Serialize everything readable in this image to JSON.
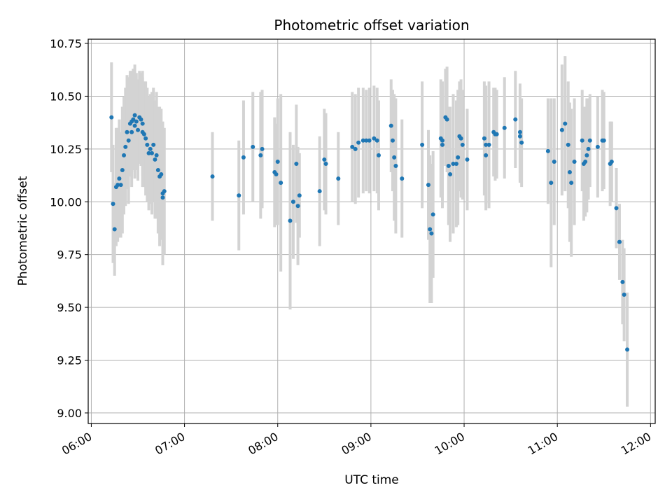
{
  "chart_data": {
    "type": "scatter",
    "title": "Photometric offset variation",
    "xlabel": "UTC time",
    "ylabel": "Photometric offset",
    "x_type": "time",
    "x_range": [
      "05:58",
      "12:03"
    ],
    "ylim": [
      8.95,
      10.77
    ],
    "xticks": [
      "06:00",
      "07:00",
      "08:00",
      "09:00",
      "10:00",
      "11:00",
      "12:00"
    ],
    "yticks": [
      "9.00",
      "9.25",
      "9.50",
      "9.75",
      "10.00",
      "10.25",
      "10.50",
      "10.75"
    ],
    "grid": true,
    "point_color": "#1f77b4",
    "errorbar_color": "#d3d3d3",
    "points": [
      {
        "t": "06:13",
        "y": 10.4,
        "err": 0.26
      },
      {
        "t": "06:14",
        "y": 9.99,
        "err": 0.28
      },
      {
        "t": "06:15",
        "y": 9.87,
        "err": 0.22
      },
      {
        "t": "06:16",
        "y": 10.07,
        "err": 0.28
      },
      {
        "t": "06:17",
        "y": 10.08,
        "err": 0.27
      },
      {
        "t": "06:18",
        "y": 10.11,
        "err": 0.28
      },
      {
        "t": "06:19",
        "y": 10.08,
        "err": 0.25
      },
      {
        "t": "06:20",
        "y": 10.15,
        "err": 0.3
      },
      {
        "t": "06:21",
        "y": 10.22,
        "err": 0.28
      },
      {
        "t": "06:22",
        "y": 10.26,
        "err": 0.28
      },
      {
        "t": "06:23",
        "y": 10.33,
        "err": 0.27
      },
      {
        "t": "06:24",
        "y": 10.29,
        "err": 0.3
      },
      {
        "t": "06:25",
        "y": 10.37,
        "err": 0.25
      },
      {
        "t": "06:26",
        "y": 10.38,
        "err": 0.24
      },
      {
        "t": "06:26",
        "y": 10.33,
        "err": 0.26
      },
      {
        "t": "06:27",
        "y": 10.39,
        "err": 0.24
      },
      {
        "t": "06:28",
        "y": 10.41,
        "err": 0.24
      },
      {
        "t": "06:28",
        "y": 10.36,
        "err": 0.25
      },
      {
        "t": "06:29",
        "y": 10.38,
        "err": 0.23
      },
      {
        "t": "06:30",
        "y": 10.34,
        "err": 0.24
      },
      {
        "t": "06:31",
        "y": 10.4,
        "err": 0.22
      },
      {
        "t": "06:32",
        "y": 10.39,
        "err": 0.22
      },
      {
        "t": "06:33",
        "y": 10.37,
        "err": 0.25
      },
      {
        "t": "06:33",
        "y": 10.33,
        "err": 0.26
      },
      {
        "t": "06:34",
        "y": 10.32,
        "err": 0.25
      },
      {
        "t": "06:35",
        "y": 10.3,
        "err": 0.27
      },
      {
        "t": "06:36",
        "y": 10.27,
        "err": 0.27
      },
      {
        "t": "06:37",
        "y": 10.23,
        "err": 0.27
      },
      {
        "t": "06:38",
        "y": 10.25,
        "err": 0.26
      },
      {
        "t": "06:39",
        "y": 10.23,
        "err": 0.29
      },
      {
        "t": "06:40",
        "y": 10.27,
        "err": 0.27
      },
      {
        "t": "06:41",
        "y": 10.2,
        "err": 0.28
      },
      {
        "t": "06:42",
        "y": 10.22,
        "err": 0.3
      },
      {
        "t": "06:43",
        "y": 10.15,
        "err": 0.3
      },
      {
        "t": "06:44",
        "y": 10.12,
        "err": 0.33
      },
      {
        "t": "06:45",
        "y": 10.13,
        "err": 0.31
      },
      {
        "t": "06:46",
        "y": 10.04,
        "err": 0.34
      },
      {
        "t": "06:46",
        "y": 10.02,
        "err": 0.32
      },
      {
        "t": "06:47",
        "y": 10.05,
        "err": 0.3
      },
      {
        "t": "07:18",
        "y": 10.12,
        "err": 0.21
      },
      {
        "t": "07:35",
        "y": 10.03,
        "err": 0.26
      },
      {
        "t": "07:38",
        "y": 10.21,
        "err": 0.27
      },
      {
        "t": "07:44",
        "y": 10.26,
        "err": 0.26
      },
      {
        "t": "07:49",
        "y": 10.22,
        "err": 0.3
      },
      {
        "t": "07:50",
        "y": 10.25,
        "err": 0.28
      },
      {
        "t": "07:58",
        "y": 10.14,
        "err": 0.26
      },
      {
        "t": "07:59",
        "y": 10.13,
        "err": 0.24
      },
      {
        "t": "08:00",
        "y": 10.19,
        "err": 0.3
      },
      {
        "t": "08:02",
        "y": 10.09,
        "err": 0.42
      },
      {
        "t": "08:08",
        "y": 9.91,
        "err": 0.42
      },
      {
        "t": "08:10",
        "y": 10.0,
        "err": 0.27
      },
      {
        "t": "08:12",
        "y": 10.18,
        "err": 0.28
      },
      {
        "t": "08:13",
        "y": 9.98,
        "err": 0.28
      },
      {
        "t": "08:14",
        "y": 10.03,
        "err": 0.2
      },
      {
        "t": "08:27",
        "y": 10.05,
        "err": 0.26
      },
      {
        "t": "08:30",
        "y": 10.2,
        "err": 0.24
      },
      {
        "t": "08:31",
        "y": 10.18,
        "err": 0.24
      },
      {
        "t": "08:39",
        "y": 10.11,
        "err": 0.22
      },
      {
        "t": "08:48",
        "y": 10.26,
        "err": 0.26
      },
      {
        "t": "08:50",
        "y": 10.25,
        "err": 0.26
      },
      {
        "t": "08:52",
        "y": 10.28,
        "err": 0.26
      },
      {
        "t": "08:55",
        "y": 10.29,
        "err": 0.25
      },
      {
        "t": "08:57",
        "y": 10.29,
        "err": 0.24
      },
      {
        "t": "08:59",
        "y": 10.29,
        "err": 0.25
      },
      {
        "t": "09:02",
        "y": 10.3,
        "err": 0.25
      },
      {
        "t": "09:04",
        "y": 10.29,
        "err": 0.25
      },
      {
        "t": "09:05",
        "y": 10.22,
        "err": 0.26
      },
      {
        "t": "09:13",
        "y": 10.36,
        "err": 0.22
      },
      {
        "t": "09:14",
        "y": 10.29,
        "err": 0.24
      },
      {
        "t": "09:15",
        "y": 10.21,
        "err": 0.3
      },
      {
        "t": "09:16",
        "y": 10.17,
        "err": 0.32
      },
      {
        "t": "09:20",
        "y": 10.11,
        "err": 0.28
      },
      {
        "t": "09:33",
        "y": 10.27,
        "err": 0.3
      },
      {
        "t": "09:37",
        "y": 10.08,
        "err": 0.26
      },
      {
        "t": "09:38",
        "y": 9.87,
        "err": 0.35
      },
      {
        "t": "09:39",
        "y": 9.85,
        "err": 0.33
      },
      {
        "t": "09:40",
        "y": 9.94,
        "err": 0.3
      },
      {
        "t": "09:45",
        "y": 10.3,
        "err": 0.28
      },
      {
        "t": "09:46",
        "y": 10.27,
        "err": 0.3
      },
      {
        "t": "09:46",
        "y": 10.29,
        "err": 0.26
      },
      {
        "t": "09:48",
        "y": 10.4,
        "err": 0.23
      },
      {
        "t": "09:49",
        "y": 10.39,
        "err": 0.25
      },
      {
        "t": "09:50",
        "y": 10.17,
        "err": 0.28
      },
      {
        "t": "09:51",
        "y": 10.13,
        "err": 0.32
      },
      {
        "t": "09:53",
        "y": 10.18,
        "err": 0.33
      },
      {
        "t": "09:55",
        "y": 10.18,
        "err": 0.3
      },
      {
        "t": "09:56",
        "y": 10.21,
        "err": 0.32
      },
      {
        "t": "09:57",
        "y": 10.31,
        "err": 0.26
      },
      {
        "t": "09:58",
        "y": 10.3,
        "err": 0.28
      },
      {
        "t": "09:59",
        "y": 10.27,
        "err": 0.26
      },
      {
        "t": "10:02",
        "y": 10.2,
        "err": 0.24
      },
      {
        "t": "10:13",
        "y": 10.3,
        "err": 0.27
      },
      {
        "t": "10:14",
        "y": 10.27,
        "err": 0.28
      },
      {
        "t": "10:14",
        "y": 10.22,
        "err": 0.26
      },
      {
        "t": "10:16",
        "y": 10.27,
        "err": 0.3
      },
      {
        "t": "10:19",
        "y": 10.33,
        "err": 0.21
      },
      {
        "t": "10:20",
        "y": 10.32,
        "err": 0.22
      },
      {
        "t": "10:21",
        "y": 10.32,
        "err": 0.21
      },
      {
        "t": "10:26",
        "y": 10.35,
        "err": 0.24
      },
      {
        "t": "10:33",
        "y": 10.39,
        "err": 0.23
      },
      {
        "t": "10:36",
        "y": 10.33,
        "err": 0.23
      },
      {
        "t": "10:36",
        "y": 10.31,
        "err": 0.22
      },
      {
        "t": "10:37",
        "y": 10.28,
        "err": 0.21
      },
      {
        "t": "10:54",
        "y": 10.24,
        "err": 0.25
      },
      {
        "t": "10:56",
        "y": 10.09,
        "err": 0.4
      },
      {
        "t": "10:58",
        "y": 10.19,
        "err": 0.3
      },
      {
        "t": "11:03",
        "y": 10.34,
        "err": 0.31
      },
      {
        "t": "11:05",
        "y": 10.37,
        "err": 0.32
      },
      {
        "t": "11:07",
        "y": 10.27,
        "err": 0.3
      },
      {
        "t": "11:08",
        "y": 10.14,
        "err": 0.33
      },
      {
        "t": "11:09",
        "y": 10.09,
        "err": 0.35
      },
      {
        "t": "11:11",
        "y": 10.19,
        "err": 0.3
      },
      {
        "t": "11:16",
        "y": 10.29,
        "err": 0.24
      },
      {
        "t": "11:17",
        "y": 10.18,
        "err": 0.27
      },
      {
        "t": "11:18",
        "y": 10.19,
        "err": 0.26
      },
      {
        "t": "11:19",
        "y": 10.22,
        "err": 0.27
      },
      {
        "t": "11:20",
        "y": 10.25,
        "err": 0.24
      },
      {
        "t": "11:21",
        "y": 10.29,
        "err": 0.22
      },
      {
        "t": "11:26",
        "y": 10.26,
        "err": 0.24
      },
      {
        "t": "11:29",
        "y": 10.29,
        "err": 0.24
      },
      {
        "t": "11:30",
        "y": 10.29,
        "err": 0.23
      },
      {
        "t": "11:34",
        "y": 10.18,
        "err": 0.2
      },
      {
        "t": "11:35",
        "y": 10.19,
        "err": 0.19
      },
      {
        "t": "11:38",
        "y": 9.97,
        "err": 0.19
      },
      {
        "t": "11:40",
        "y": 9.81,
        "err": 0.18
      },
      {
        "t": "11:42",
        "y": 9.62,
        "err": 0.2
      },
      {
        "t": "11:43",
        "y": 9.56,
        "err": 0.22
      },
      {
        "t": "11:45",
        "y": 9.3,
        "err": 0.27
      }
    ]
  }
}
